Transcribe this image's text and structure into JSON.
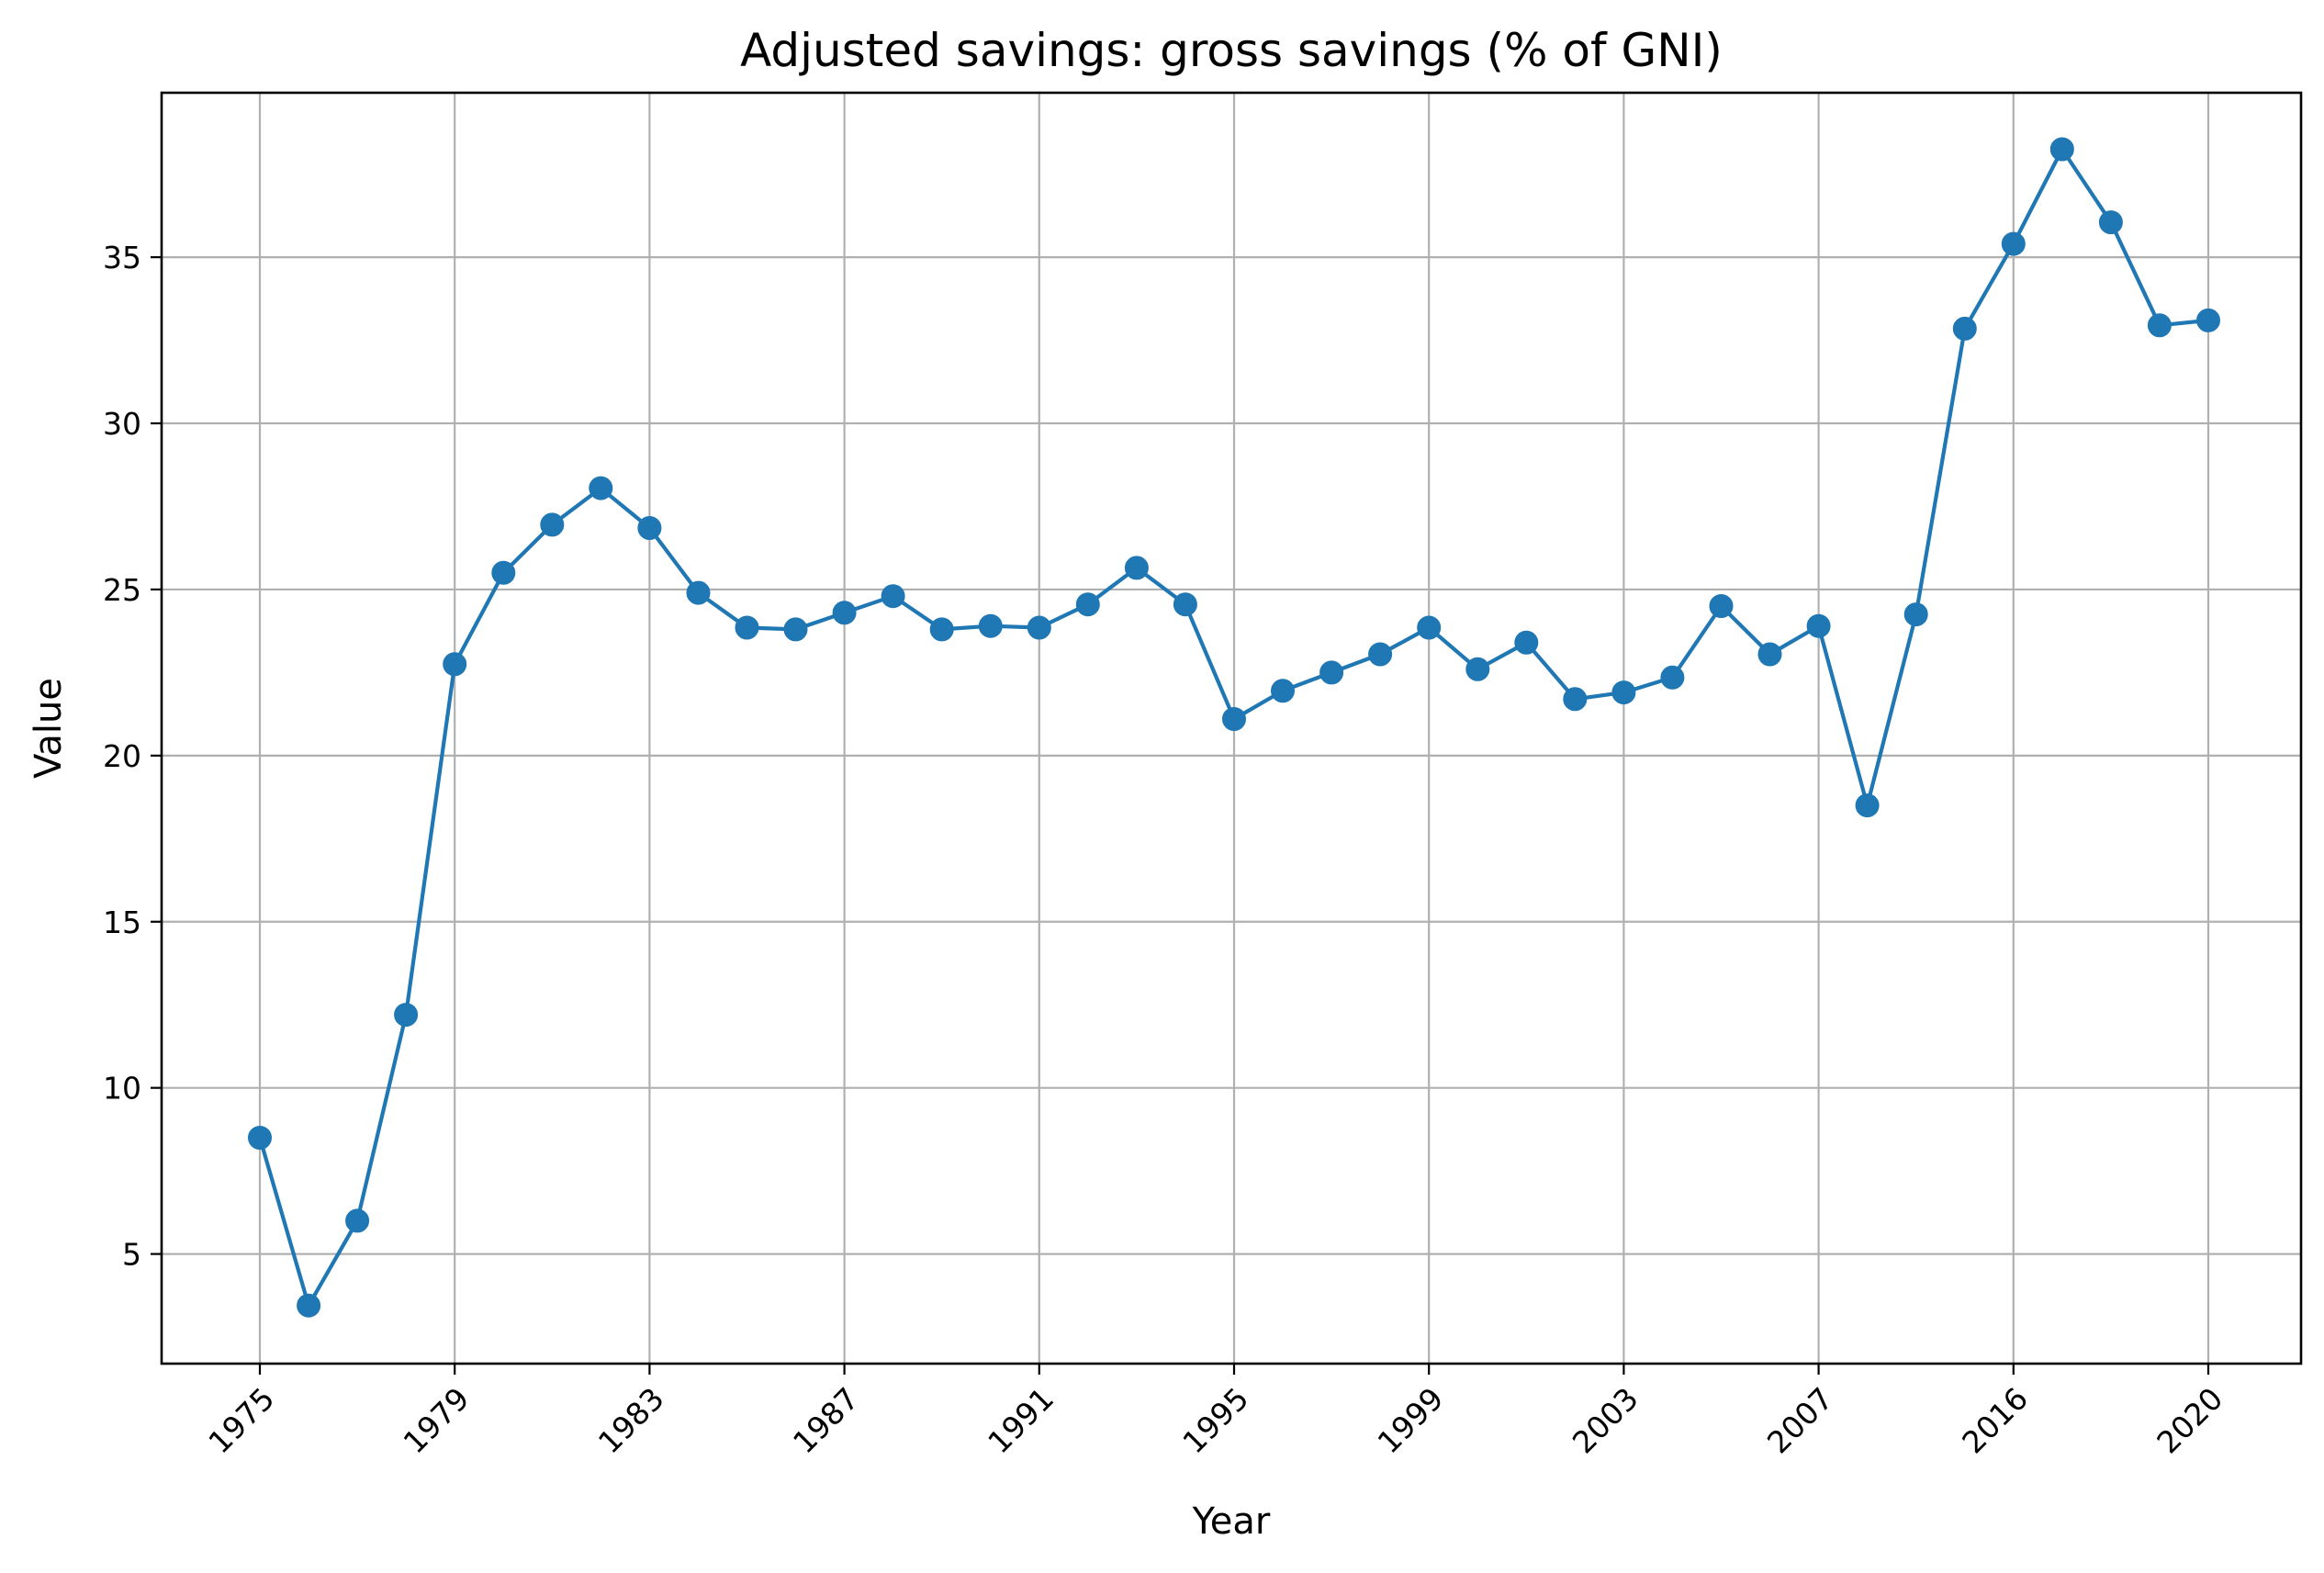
{
  "chart_data": {
    "type": "line",
    "title": "Adjusted savings: gross savings (% of GNI)",
    "xlabel": "Year",
    "ylabel": "Value",
    "x": [
      "1975",
      "1976",
      "1977",
      "1978",
      "1979",
      "1980",
      "1981",
      "1982",
      "1983",
      "1984",
      "1985",
      "1986",
      "1987",
      "1988",
      "1989",
      "1990",
      "1991",
      "1992",
      "1993",
      "1994",
      "1995",
      "1996",
      "1997",
      "1998",
      "1999",
      "2000",
      "2001",
      "2002",
      "2003",
      "2004",
      "2005",
      "2006",
      "2007",
      "2008",
      "2014",
      "2015",
      "2016",
      "2017",
      "2018",
      "2019",
      "2020"
    ],
    "series": [
      {
        "name": "",
        "values": [
          8.5,
          3.45,
          6.0,
          12.2,
          22.75,
          25.5,
          26.95,
          28.05,
          26.85,
          24.9,
          23.85,
          23.8,
          24.3,
          24.8,
          23.8,
          23.9,
          23.85,
          24.55,
          25.65,
          24.55,
          21.1,
          21.95,
          22.5,
          23.05,
          23.85,
          22.6,
          23.4,
          21.7,
          21.9,
          22.35,
          24.5,
          23.05,
          23.9,
          18.5,
          24.25,
          32.85,
          35.4,
          38.25,
          36.05,
          32.95,
          33.1
        ]
      }
    ],
    "xticks": [
      "1975",
      "1979",
      "1983",
      "1987",
      "1991",
      "1995",
      "1999",
      "2003",
      "2007",
      "2016",
      "2020"
    ],
    "yticks": [
      5,
      10,
      15,
      20,
      25,
      30,
      35
    ],
    "ylim": [
      1.7,
      39.95
    ],
    "grid": true,
    "colors": {
      "series": "#1f77b4",
      "grid": "#b0b0b0",
      "axes": "#000000"
    }
  }
}
